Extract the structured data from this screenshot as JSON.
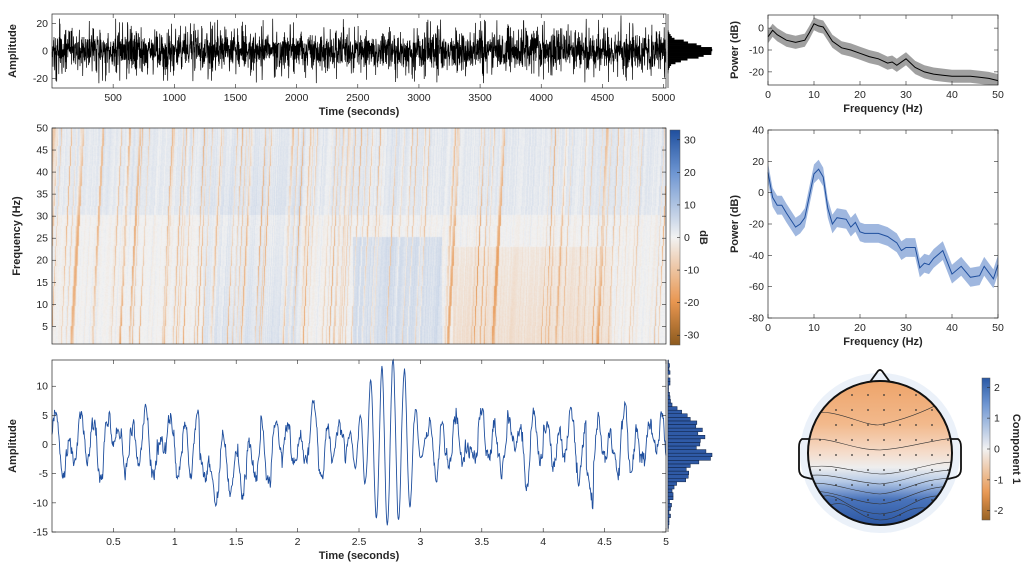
{
  "chart_data": [
    {
      "id": "raw-trace",
      "type": "line",
      "xlabel": "Time (seconds)",
      "ylabel": "Amplitude",
      "xlim": [
        0,
        5020
      ],
      "ylim": [
        -27,
        27
      ],
      "xticks": [
        500,
        1000,
        1500,
        2000,
        2500,
        3000,
        3500,
        4000,
        4500,
        5000
      ],
      "yticks": [
        -20,
        0,
        20
      ],
      "color": "#000000",
      "amplitude_typical": 10,
      "amplitude_peak": 25,
      "marginal_histogram": true
    },
    {
      "id": "psd-raw",
      "type": "area",
      "xlabel": "Frequency (Hz)",
      "ylabel": "Power (dB)",
      "xlim": [
        0,
        50
      ],
      "ylim": [
        -26,
        6
      ],
      "xticks": [
        0,
        10,
        20,
        30,
        40,
        50
      ],
      "yticks": [
        -20,
        -10,
        0
      ],
      "x": [
        0,
        1,
        2,
        4,
        6,
        8,
        9,
        10,
        11,
        12,
        14,
        16,
        18,
        20,
        22,
        24,
        26,
        27,
        28,
        30,
        32,
        34,
        36,
        38,
        40,
        42,
        44,
        46,
        48,
        50
      ],
      "mean": [
        -4,
        -1,
        -3,
        -5.5,
        -6.5,
        -5.5,
        -2,
        2,
        1,
        0.5,
        -6,
        -9,
        -10,
        -11.5,
        -13,
        -14,
        -16,
        -15.5,
        -17,
        -14,
        -18,
        -20,
        -21,
        -21.5,
        -22,
        -22,
        -22,
        -22.5,
        -23,
        -24
      ],
      "band_halfwidth": 3,
      "color": "#000000",
      "band_color": "#808080"
    },
    {
      "id": "spectrogram",
      "type": "heatmap",
      "ylabel": "Frequency (Hz)",
      "ylim": [
        1,
        50
      ],
      "yticks": [
        5,
        10,
        15,
        20,
        25,
        30,
        35,
        40,
        45,
        50
      ],
      "xlim": [
        0,
        5020
      ],
      "colorbar": {
        "label": "dB",
        "ticks": [
          -30,
          -20,
          -10,
          0,
          10,
          20,
          30
        ],
        "range": [
          -33,
          33
        ],
        "neg_color": "#8c5a1e",
        "mid_color": "#f2f2f2",
        "pos_color": "#1f4f9e"
      }
    },
    {
      "id": "psd-component",
      "type": "area",
      "xlabel": "Frequency (Hz)",
      "ylabel": "Power (dB)",
      "xlim": [
        0,
        50
      ],
      "ylim": [
        -80,
        40
      ],
      "xticks": [
        0,
        10,
        20,
        30,
        40,
        50
      ],
      "yticks": [
        -80,
        -60,
        -40,
        -20,
        0,
        20,
        40
      ],
      "x": [
        0,
        1,
        2,
        3,
        4,
        6,
        7,
        8,
        9,
        10,
        11,
        12,
        13,
        14,
        15,
        17,
        18,
        19,
        20,
        21,
        24,
        26,
        28,
        29,
        30,
        32,
        33,
        34,
        35,
        36,
        38,
        40,
        42,
        44,
        46,
        47,
        49,
        50
      ],
      "mean": [
        13,
        -3,
        -8,
        -8,
        -13,
        -22,
        -20,
        -16,
        -2,
        12,
        15,
        10,
        -10,
        -20,
        -16,
        -17,
        -22,
        -19,
        -25,
        -26,
        -26,
        -28,
        -32,
        -37,
        -35,
        -35,
        -48,
        -45,
        -46,
        -42,
        -37,
        -52,
        -47,
        -54,
        -53,
        -47,
        -55,
        -46
      ],
      "band_halfwidth": 6,
      "color": "#1f4f9e",
      "band_color": "#7f9fd4"
    },
    {
      "id": "component-trace",
      "type": "line",
      "xlabel": "Time (seconds)",
      "ylabel": "Amplitude",
      "xlim": [
        0,
        5
      ],
      "ylim": [
        -15,
        14.5
      ],
      "xticks": [
        0.5,
        1,
        1.5,
        2,
        2.5,
        3,
        3.5,
        4,
        4.5,
        5
      ],
      "yticks": [
        -15,
        -10,
        -5,
        0,
        5,
        10
      ],
      "color": "#1f4f9e",
      "alpha_burst": {
        "start": 2.5,
        "end": 3.0,
        "amplitude": 14,
        "frequency_hz": 11
      },
      "marginal_histogram": true
    },
    {
      "id": "topomap",
      "type": "heatmap",
      "colorbar": {
        "label": "Component 1",
        "ticks": [
          -2,
          -1,
          0,
          1,
          2
        ],
        "range": [
          -2.3,
          2.3
        ]
      },
      "frontal_value": -1.5,
      "occipital_value": 2.2
    }
  ]
}
